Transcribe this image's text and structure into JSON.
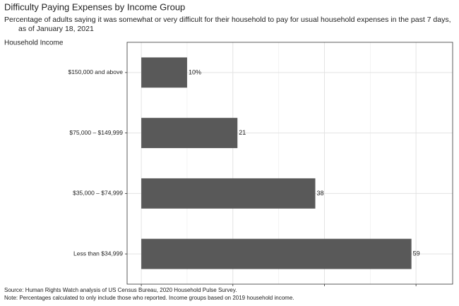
{
  "chart_data": {
    "type": "bar",
    "orientation": "horizontal",
    "title": "Difficulty Paying Expenses by Income Group",
    "subtitle": [
      "Percentage of adults saying it was somewhat or very difficult for their household to pay for usual household expenses in the past 7 days,",
      "as of January 18, 2021"
    ],
    "y_axis_title": "Household Income",
    "categories": [
      "$150,000 and above",
      "$75,000 – $149,999",
      "$35,000 – $74,999",
      "Less than $34,999"
    ],
    "values": [
      10,
      21,
      38,
      59
    ],
    "value_labels": [
      "10%",
      "21",
      "38",
      "59"
    ],
    "color": "#595959",
    "xlim": [
      -3.1,
      68
    ],
    "xticks": [
      0,
      20,
      40,
      60
    ],
    "xminor_ticks": [
      10,
      30,
      50
    ],
    "grid": true,
    "source": "Source: Human Rights Watch analysis of US Census Bureau, 2020 Household Pulse Survey.",
    "note": "Note: Percentages calculated to only include those who reported. Income groups based on 2019 household income."
  }
}
